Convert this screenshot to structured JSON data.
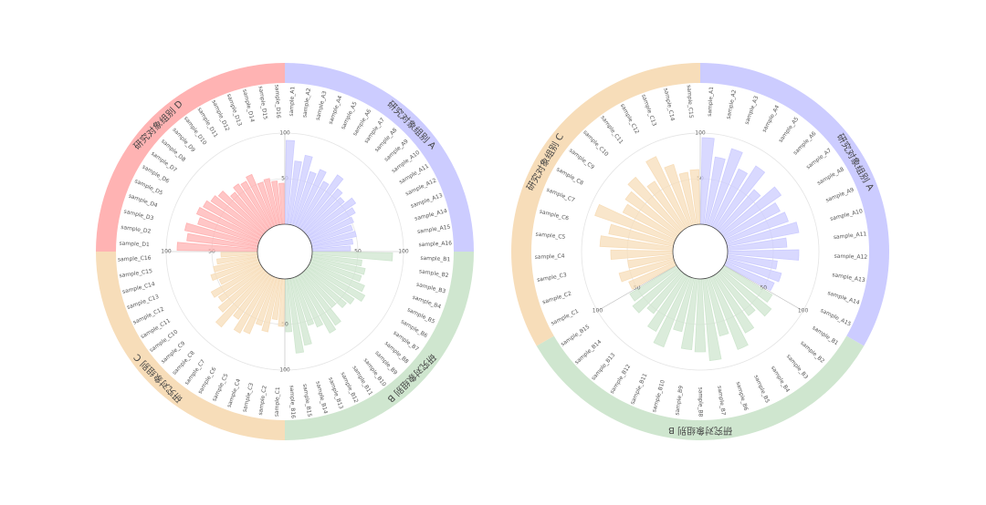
{
  "chart_data": [
    {
      "type": "radial_bar",
      "ylim": [
        0,
        100
      ],
      "yticks": [
        50,
        100
      ],
      "series": [
        {
          "name": "研究对象组别 A",
          "color": "#ccccff",
          "categories": [
            "sample_A1",
            "sample_A2",
            "sample_A3",
            "sample_A4",
            "sample_A5",
            "sample_A6",
            "sample_A7",
            "sample_A8",
            "sample_A9",
            "sample_A10",
            "sample_A11",
            "sample_A12",
            "sample_A13",
            "sample_A14",
            "sample_A15",
            "sample_A16"
          ],
          "values": [
            92,
            70,
            78,
            62,
            68,
            58,
            72,
            60,
            55,
            64,
            58,
            52,
            48,
            50,
            45,
            42
          ]
        },
        {
          "name": "研究对象组别 B",
          "color": "#cfe6cf",
          "categories": [
            "sample_B1",
            "sample_B2",
            "sample_B3",
            "sample_B4",
            "sample_B5",
            "sample_B6",
            "sample_B7",
            "sample_B8",
            "sample_B9",
            "sample_B10",
            "sample_B11",
            "sample_B12",
            "sample_B13",
            "sample_B14",
            "sample_B15",
            "sample_B16"
          ],
          "values": [
            88,
            55,
            60,
            58,
            65,
            70,
            62,
            58,
            50,
            68,
            72,
            60,
            55,
            75,
            82,
            58
          ]
        },
        {
          "name": "研究对象组别 C",
          "color": "#f7ddb9",
          "categories": [
            "sample_C1",
            "sample_C2",
            "sample_C3",
            "sample_C4",
            "sample_C5",
            "sample_C6",
            "sample_C7",
            "sample_C8",
            "sample_C9",
            "sample_C10",
            "sample_C11",
            "sample_C12",
            "sample_C13",
            "sample_C14",
            "sample_C15",
            "sample_C16"
          ],
          "values": [
            52,
            45,
            60,
            55,
            68,
            72,
            60,
            78,
            65,
            58,
            62,
            48,
            55,
            50,
            45,
            40
          ]
        },
        {
          "name": "研究对象组别 D",
          "color": "#ffb3b3",
          "categories": [
            "sample_D1",
            "sample_D2",
            "sample_D3",
            "sample_D4",
            "sample_D5",
            "sample_D6",
            "sample_D7",
            "sample_D8",
            "sample_D9",
            "sample_D10",
            "sample_D11",
            "sample_D12",
            "sample_D13",
            "sample_D14",
            "sample_D15",
            "sample_D16"
          ],
          "values": [
            88,
            78,
            82,
            70,
            75,
            72,
            68,
            65,
            55,
            60,
            58,
            62,
            50,
            52,
            48,
            45
          ]
        }
      ]
    },
    {
      "type": "radial_bar",
      "ylim": [
        0,
        100
      ],
      "yticks": [
        50,
        100
      ],
      "series": [
        {
          "name": "研究对象组别 A",
          "color": "#ccccff",
          "categories": [
            "sample_A1",
            "sample_A2",
            "sample_A3",
            "sample_A4",
            "sample_A5",
            "sample_A6",
            "sample_A7",
            "sample_A8",
            "sample_A9",
            "sample_A10",
            "sample_A11",
            "sample_A12",
            "sample_A13",
            "sample_A14",
            "sample_A15"
          ],
          "values": [
            95,
            75,
            88,
            70,
            82,
            60,
            78,
            68,
            72,
            80,
            65,
            78,
            55,
            62,
            58
          ]
        },
        {
          "name": "研究对象组别 B",
          "color": "#cfe6cf",
          "categories": [
            "sample_B1",
            "sample_B2",
            "sample_B3",
            "sample_B4",
            "sample_B5",
            "sample_B6",
            "sample_B7",
            "sample_B8",
            "sample_B9",
            "sample_B10",
            "sample_B11",
            "sample_B12",
            "sample_B13",
            "sample_B14",
            "sample_B15"
          ],
          "values": [
            62,
            70,
            58,
            72,
            85,
            65,
            90,
            80,
            78,
            60,
            82,
            70,
            55,
            65,
            60
          ]
        },
        {
          "name": "研究对象组别 C",
          "color": "#f7ddb9",
          "categories": [
            "sample_C1",
            "sample_C2",
            "sample_C3",
            "sample_C4",
            "sample_C5",
            "sample_C6",
            "sample_C7",
            "sample_C8",
            "sample_C9",
            "sample_C10",
            "sample_C11",
            "sample_C12",
            "sample_C13",
            "sample_C14",
            "sample_C15"
          ],
          "values": [
            55,
            62,
            50,
            68,
            80,
            72,
            92,
            65,
            70,
            78,
            62,
            85,
            70,
            58,
            60
          ]
        }
      ]
    }
  ]
}
